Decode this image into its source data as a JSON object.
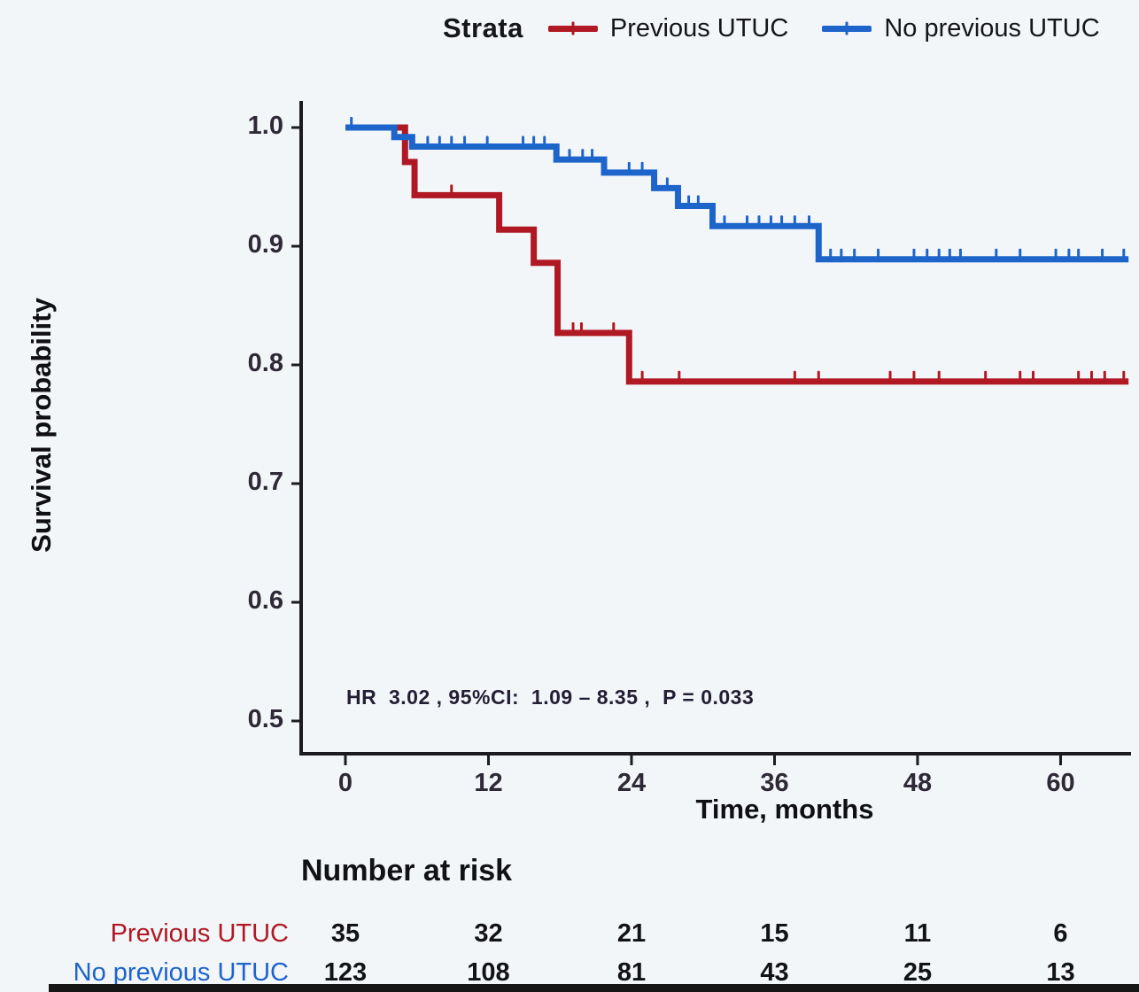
{
  "page": {
    "background": "#f3f6f9"
  },
  "legend": {
    "title": "Strata",
    "items": [
      {
        "label": "Previous UTUC",
        "color": "#b01823"
      },
      {
        "label": "No previous UTUC",
        "color": "#1d64cb"
      }
    ]
  },
  "chart_data": {
    "type": "line",
    "subtype": "kaplan-meier-step",
    "xlabel": "Time, months",
    "ylabel": "Survival probability",
    "xlim": [
      0,
      66
    ],
    "ylim": [
      0.47,
      1.02
    ],
    "xticks": [
      0,
      12,
      24,
      36,
      48,
      60
    ],
    "yticks": [
      1.0,
      0.9,
      0.8,
      0.7,
      0.6,
      0.5
    ],
    "grid": false,
    "annotation": "HR  3.02 , 95%CI:  1.09 – 8.35 ,  P = 0.033",
    "series": [
      {
        "name": "Previous UTUC",
        "color": "#b01823",
        "steps": [
          [
            0,
            1.0
          ],
          [
            5.0,
            0.971
          ],
          [
            5.8,
            0.943
          ],
          [
            12.9,
            0.914
          ],
          [
            15.8,
            0.886
          ],
          [
            17.8,
            0.827
          ],
          [
            23.8,
            0.786
          ]
        ],
        "end_month": 65.7,
        "censor_months": [
          8.9,
          19.1,
          19.8,
          22.5,
          24.9,
          28.0,
          37.7,
          39.7,
          45.7,
          47.7,
          49.8,
          53.7,
          56.6,
          57.7,
          61.5,
          62.6,
          63.7,
          65.3
        ]
      },
      {
        "name": "No previous UTUC",
        "color": "#1d64cb",
        "steps": [
          [
            0,
            1.0
          ],
          [
            4.1,
            0.992
          ],
          [
            5.6,
            0.984
          ],
          [
            17.7,
            0.973
          ],
          [
            21.7,
            0.962
          ],
          [
            25.9,
            0.949
          ],
          [
            27.9,
            0.934
          ],
          [
            30.8,
            0.917
          ],
          [
            39.7,
            0.889
          ]
        ],
        "end_month": 65.7,
        "censor_months": [
          0.5,
          6.9,
          7.9,
          8.9,
          10.0,
          11.9,
          14.9,
          15.8,
          16.7,
          18.8,
          19.9,
          20.7,
          23.8,
          24.9,
          27.0,
          28.8,
          29.6,
          31.8,
          33.7,
          34.7,
          35.7,
          36.6,
          37.7,
          38.9,
          40.7,
          41.6,
          42.7,
          44.7,
          47.7,
          48.8,
          49.8,
          50.7,
          51.6,
          54.6,
          56.6,
          59.6,
          60.7,
          61.5,
          63.5,
          65.3
        ]
      }
    ]
  },
  "risk_table": {
    "title": "Number at risk",
    "time_points": [
      0,
      12,
      24,
      36,
      48,
      60
    ],
    "rows": [
      {
        "label": "Previous UTUC",
        "color": "#b01823",
        "values": [
          35,
          32,
          21,
          15,
          11,
          6
        ]
      },
      {
        "label": "No previous UTUC",
        "color": "#1d64cb",
        "values": [
          123,
          108,
          81,
          43,
          25,
          13
        ]
      }
    ]
  }
}
